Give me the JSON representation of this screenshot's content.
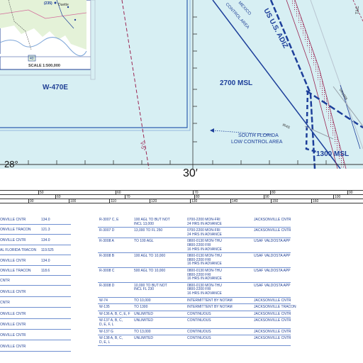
{
  "map": {
    "colors": {
      "water": "#d7eff3",
      "land": "#e4f2d8",
      "boundary": "#2e5fb0",
      "restricted": "#9b2552",
      "adiz": "#1d3f9a",
      "text": "#1f3f94"
    },
    "inset": {
      "scale_text": "SCALE 1:500,000",
      "labels": [
        "(235)",
        "Duette",
        "40"
      ]
    },
    "warning_area": "W-470E",
    "mocab_label": "2700 MSL",
    "low_control": [
      "SOUTH FLORIDA",
      "LOW CONTROL AREA"
    ],
    "lower_msl": "1300 MSL",
    "mexico_area": [
      "MEXICO",
      "CONTROL AREA"
    ],
    "adiz_label": "US U.S. ADIZ",
    "airway_v": "V-5°",
    "route_ir": "IR4S",
    "route_vr": "VR1006",
    "right_edge": "TAC",
    "lat_label": "28°",
    "min_label": "30′"
  },
  "scale": {
    "row1": [
      "50",
      "60",
      "70",
      "80",
      "90",
      "100"
    ],
    "row2": [
      "60",
      "70",
      "80",
      "90",
      "100",
      "110"
    ],
    "row3": [
      "90",
      "100",
      "110",
      "120",
      "130",
      "140",
      "150",
      "160"
    ]
  },
  "left_table": [
    {
      "agency": "ONVILLE CNTR",
      "freq": "134.0"
    },
    {
      "agency": "ONVILLE TRACON",
      "freq": "121.3"
    },
    {
      "agency": "ONVILLE CNTR",
      "freq": "134.0"
    },
    {
      "agency": "AL FLORIDA TRACON",
      "freq": "119.525"
    },
    {
      "agency": "ONVILLE CNTR",
      "freq": "134.0"
    },
    {
      "agency": "ONVILLE TRACON",
      "freq": "118.6"
    },
    {
      "agency": "CNTR",
      "freq": ""
    },
    {
      "agency": "ONVILLE CNTR",
      "freq": ""
    },
    {
      "agency": "CNTR",
      "freq": ""
    },
    {
      "agency": "ONVILLE CNTR",
      "freq": ""
    },
    {
      "agency": "ONVILLE CNTR",
      "freq": ""
    },
    {
      "agency": "ONVILLE CNTR",
      "freq": ""
    },
    {
      "agency": "ONVILLE CNTR",
      "freq": ""
    }
  ],
  "sua_table": [
    {
      "name": [
        "R-3007 C, E"
      ],
      "alt": [
        "100 AGL TO BUT NOT",
        "INCL 13,000"
      ],
      "time": [
        "0700-2200 MON-FRI",
        "24 HRS IN ADVANCE"
      ],
      "agency": [
        "JACKSONVILLE CNTR"
      ]
    },
    {
      "name": [
        "R-3007 D"
      ],
      "alt": [
        "13,000 TO FL 250"
      ],
      "time": [
        "0700-2200 MON-FRI",
        "24 HRS IN ADVANCE"
      ],
      "agency": [
        "JACKSONVILLE CNTR"
      ]
    },
    {
      "name": [
        "R-3008 A"
      ],
      "alt": [
        "TO 100 AGL"
      ],
      "time": [
        "0800-0130 MON-THU",
        "0800-2200 FRI",
        "16 HRS IN ADVANCE"
      ],
      "agency": [
        "USAF VALDOSTA APP"
      ]
    },
    {
      "name": [
        "R-3008 B"
      ],
      "alt": [
        "100 AGL TO 10,000"
      ],
      "time": [
        "0800-0130 MON-THU",
        "0800-2200 FRI",
        "16 HRS IN ADVANCE"
      ],
      "agency": [
        "USAF VALDOSTA APP"
      ]
    },
    {
      "name": [
        "R-3008 C"
      ],
      "alt": [
        "500 AGL TO 10,000"
      ],
      "time": [
        "0800-0130 MON-THU",
        "0800-2200 FRI",
        "16 HRS IN ADVANCE"
      ],
      "agency": [
        "USAF VALDOSTA APP"
      ]
    },
    {
      "name": [
        "R-3008 D"
      ],
      "alt": [
        "10,000 TO BUT NOT",
        "INCL FL 230"
      ],
      "time": [
        "0800-0130 MON-THU",
        "0800-2200 FRI",
        "16 HRS IN ADVANCE"
      ],
      "agency": [
        "USAF VALDOSTA APP"
      ]
    },
    {
      "name": [
        "W-74"
      ],
      "alt": [
        "TO 10,000"
      ],
      "time": [
        "INTERMITTENT BY NOTAM"
      ],
      "agency": [
        "JACKSONVILLE CNTR"
      ]
    },
    {
      "name": [
        "W-135"
      ],
      "alt": [
        "TO 1300"
      ],
      "time": [
        "INTERMITTENT BY NOTAM"
      ],
      "agency": [
        "JACKSONVILLE TRACON"
      ]
    },
    {
      "name": [
        "W-136 A, B, C, E, F"
      ],
      "alt": [
        "UNLIMITED"
      ],
      "time": [
        "CONTINUOUS"
      ],
      "agency": [
        "JACKSONVILLE CNTR"
      ]
    },
    {
      "name": [
        "W-137 A, B, C,",
        "D, E, F, L"
      ],
      "alt": [
        "UNLIMITED"
      ],
      "time": [
        "CONTINUOUS"
      ],
      "agency": [
        "JACKSONVILLE CNTR"
      ]
    },
    {
      "name": [
        "W-137 G"
      ],
      "alt": [
        "TO 13,000"
      ],
      "time": [
        "CONTINUOUS"
      ],
      "agency": [
        "JACKSONVILLE CNTR"
      ]
    },
    {
      "name": [
        "W-138 A, B, C,",
        "D, E, L"
      ],
      "alt": [
        "UNLIMITED"
      ],
      "time": [
        "CONTINUOUS"
      ],
      "agency": [
        "JACKSONVILLE CNTR"
      ]
    }
  ]
}
